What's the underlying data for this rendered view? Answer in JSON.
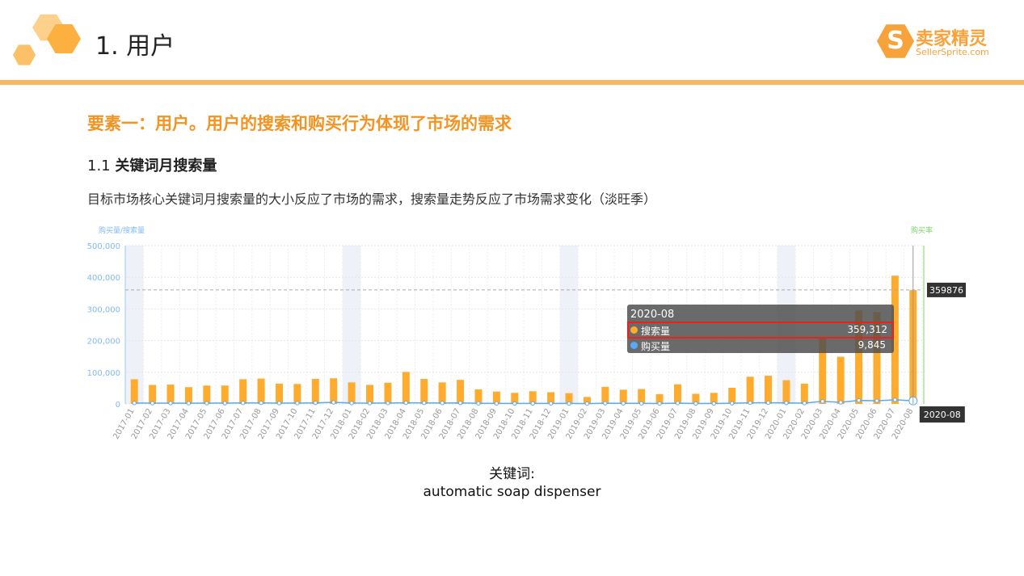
{
  "slide": {
    "title": "1. 用户",
    "heading": "要素一：用户。用户的搜索和购买行为体现了市场的需求",
    "subheading_num": "1.1 ",
    "subheading": "关键词月搜索量",
    "description": "目标市场核心关键词月搜索量的大小反应了市场的需求，搜索量走势反应了市场需求变化（淡旺季）",
    "caption_label": "关键词:",
    "caption_value": "automatic soap dispenser"
  },
  "logo": {
    "cn": "卖家精灵",
    "en": "SellerSprite.com",
    "watermark": "卖家精灵"
  },
  "colors": {
    "accent": "#f39422",
    "bar": "#ffab2e",
    "line": "#5aa9f7",
    "rate": "#7fd36a",
    "highlight": "#e8231c"
  },
  "chart_data": {
    "type": "bar",
    "ylabel": "购买量/搜索量",
    "y2label": "购买率",
    "ylim": [
      0,
      500000
    ],
    "yticks": [
      "0",
      "100,000",
      "200,000",
      "300,000",
      "400,000",
      "500,000"
    ],
    "categories": [
      "2017-01",
      "2017-02",
      "2017-03",
      "2017-04",
      "2017-05",
      "2017-06",
      "2017-07",
      "2017-08",
      "2017-09",
      "2017-10",
      "2017-11",
      "2017-12",
      "2018-01",
      "2018-02",
      "2018-03",
      "2018-04",
      "2018-05",
      "2018-06",
      "2018-07",
      "2018-08",
      "2018-09",
      "2018-10",
      "2018-11",
      "2018-12",
      "2019-01",
      "2019-02",
      "2019-03",
      "2019-04",
      "2019-05",
      "2019-06",
      "2019-07",
      "2019-08",
      "2019-09",
      "2019-10",
      "2019-11",
      "2019-12",
      "2020-01",
      "2020-02",
      "2020-03",
      "2020-04",
      "2020-05",
      "2020-06",
      "2020-07",
      "2020-08"
    ],
    "series": [
      {
        "name": "搜索量",
        "type": "bar",
        "values": [
          78000,
          60000,
          61000,
          53000,
          58000,
          58000,
          78000,
          80000,
          64000,
          63000,
          79000,
          81000,
          68000,
          60000,
          67000,
          101000,
          79000,
          68000,
          76000,
          46000,
          39000,
          35000,
          40000,
          37000,
          34000,
          22000,
          54000,
          45000,
          47000,
          31000,
          62000,
          32000,
          35000,
          51000,
          86000,
          89000,
          75000,
          64000,
          212000,
          149000,
          295000,
          290000,
          405000,
          359312
        ]
      },
      {
        "name": "购买量",
        "type": "line",
        "values": [
          3000,
          2500,
          2600,
          2300,
          2400,
          2400,
          3200,
          3300,
          2700,
          2600,
          3300,
          5000,
          2800,
          2500,
          2800,
          3500,
          3300,
          3000,
          3100,
          1900,
          1600,
          1500,
          1700,
          1600,
          1500,
          1000,
          2200,
          1900,
          2000,
          1300,
          2600,
          1400,
          1500,
          2100,
          3600,
          3800,
          3100,
          2700,
          8000,
          5000,
          11000,
          10000,
          13000,
          9845
        ]
      }
    ],
    "year_bands": [
      "2017-01",
      "2018-01",
      "2019-01",
      "2020-01"
    ],
    "reference_line": {
      "value": 359876,
      "label": "359876"
    },
    "tooltip": {
      "title": "2020-08",
      "rows": [
        {
          "name": "搜索量",
          "value": "359,312"
        },
        {
          "name": "购买量",
          "value": "9,845"
        }
      ]
    },
    "cursor_label": "2020-08",
    "grid": true,
    "legend": "none"
  }
}
